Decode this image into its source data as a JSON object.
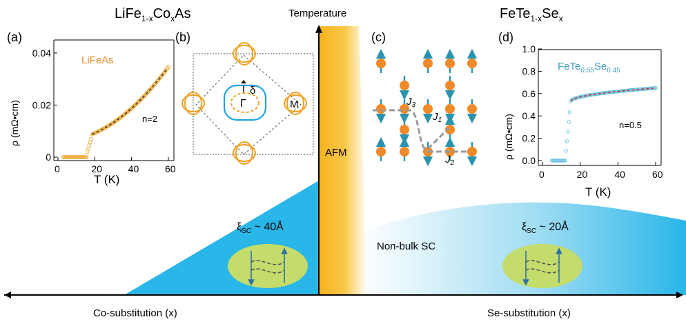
{
  "titles": {
    "left": {
      "base": "LiFe",
      "sub1": "1-x",
      "mid": "Co",
      "sub2": "x",
      "end": "As"
    },
    "center": "Temperature",
    "right": {
      "base": "FeTe",
      "sub1": "1-x",
      "mid": "Se",
      "sub2": "x"
    }
  },
  "panel_labels": {
    "a": "(a)",
    "b": "(b)",
    "c": "(c)",
    "d": "(d)"
  },
  "phase_labels": {
    "afm": "AFM",
    "non_bulk": "Non-bulk SC"
  },
  "coherence": {
    "left": {
      "xi": "ξ",
      "sub": "SC",
      "val": " ~ 40Å"
    },
    "right": {
      "xi": "ξ",
      "sub": "SC",
      "val": " ~ 20Å"
    }
  },
  "axis_labels": {
    "left": "Co-substitution (x)",
    "right": "Se-substitution (x)"
  },
  "fermi_surface": {
    "delta": "δ",
    "gamma": "Γ",
    "m": "M"
  },
  "couplings": {
    "j1": "J",
    "j1_sub": "1",
    "j2": "J",
    "j2_sub": "2",
    "j3": "J",
    "j3_sub": "3"
  },
  "inset_a": {
    "sample": "LiFeAs",
    "fit_note": "n=2",
    "xlabel": "T (K)",
    "ylabel": "ρ (mΩ•cm)",
    "xticks": [
      "0",
      "20",
      "40",
      "60"
    ],
    "yticks": [
      "0",
      "0.02",
      "0.04"
    ]
  },
  "inset_d": {
    "sample": {
      "base": "FeTe",
      "sub1": "0.55",
      "mid": "Se",
      "sub2": "0.45"
    },
    "fit_note": "n=0.5",
    "xlabel": "T (K)",
    "ylabel": "ρ (mΩ•cm)",
    "xticks": [
      "0",
      "20",
      "40",
      "60"
    ],
    "yticks": [
      "0.0",
      "0.2",
      "0.4",
      "0.6",
      "0.8",
      "1.0"
    ]
  },
  "colors": {
    "sc_blue": "#29b6e8",
    "afm_orange": "#f6b21b",
    "fe_orange": "#ef8a2a",
    "spin_teal": "#2a93ad",
    "pair_green": "#c3dc6b",
    "fit_red": "#c0392b",
    "data_cyan": "#6fc3e3",
    "sample_teal": "#3e9ebd"
  }
}
